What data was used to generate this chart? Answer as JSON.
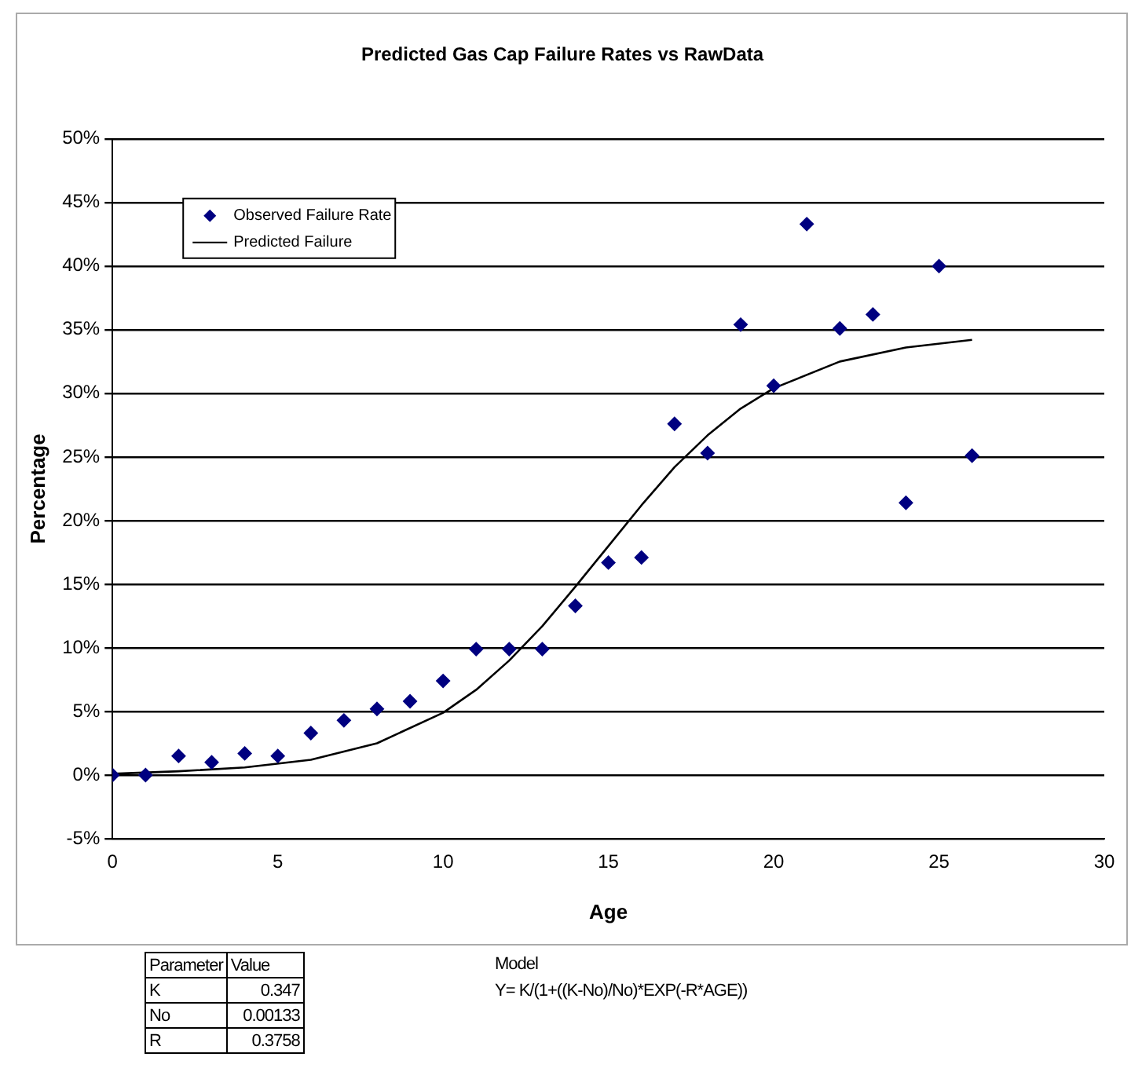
{
  "chart_data": {
    "type": "scatter",
    "title": "Predicted Gas Cap Failure Rates vs RawData",
    "xlabel": "Age",
    "ylabel": "Percentage",
    "xlim": [
      0,
      30
    ],
    "xticks": [
      0,
      5,
      10,
      15,
      20,
      25,
      30
    ],
    "ylim": [
      -5,
      50
    ],
    "yticks": [
      {
        "value": -5,
        "label": "-5%"
      },
      {
        "value": 0,
        "label": "0%"
      },
      {
        "value": 5,
        "label": "5%"
      },
      {
        "value": 10,
        "label": "10%"
      },
      {
        "value": 15,
        "label": "15%"
      },
      {
        "value": 20,
        "label": "20%"
      },
      {
        "value": 25,
        "label": "25%"
      },
      {
        "value": 30,
        "label": "30%"
      },
      {
        "value": 35,
        "label": "35%"
      },
      {
        "value": 40,
        "label": "40%"
      },
      {
        "value": 45,
        "label": "45%"
      },
      {
        "value": 50,
        "label": "50%"
      }
    ],
    "grid": "y",
    "legend": "top left",
    "marker": "diamond",
    "series": [
      {
        "name": "Observed Failure Rate",
        "color": "#000080",
        "x": [
          0,
          1,
          2,
          3,
          4,
          5,
          6,
          7,
          8,
          9,
          10,
          11,
          12,
          13,
          14,
          15,
          16,
          17,
          18,
          19,
          20,
          21,
          22,
          23,
          24,
          25,
          26
        ],
        "values": [
          0,
          0,
          1.5,
          1,
          1.7,
          1.5,
          3.3,
          4.3,
          5.2,
          5.8,
          7.4,
          9.9,
          9.9,
          9.9,
          13.3,
          16.7,
          17.1,
          27.6,
          25.3,
          35.4,
          30.6,
          43.3,
          35.1,
          36.2,
          21.4,
          40,
          25.1
        ]
      },
      {
        "name": "Predicted Failure",
        "type": "line",
        "color": "#000000",
        "marker": "none",
        "x": [
          0,
          2,
          4,
          6,
          8,
          10,
          11,
          12,
          13,
          14,
          15,
          16,
          17,
          18,
          19,
          20,
          22,
          24,
          26
        ],
        "values": [
          0.1,
          0.3,
          0.6,
          1.2,
          2.5,
          4.9,
          6.7,
          9,
          11.7,
          14.8,
          18,
          21.2,
          24.2,
          26.7,
          28.8,
          30.4,
          32.5,
          33.6,
          34.2
        ]
      }
    ],
    "annotations": [
      "Parameter",
      "Value",
      "K",
      "0.347",
      "No",
      "0.00133",
      "R",
      "0.3758",
      "Model",
      "Y= K/(1+((K-No)/No)*EXP(-R*AGE))"
    ]
  }
}
